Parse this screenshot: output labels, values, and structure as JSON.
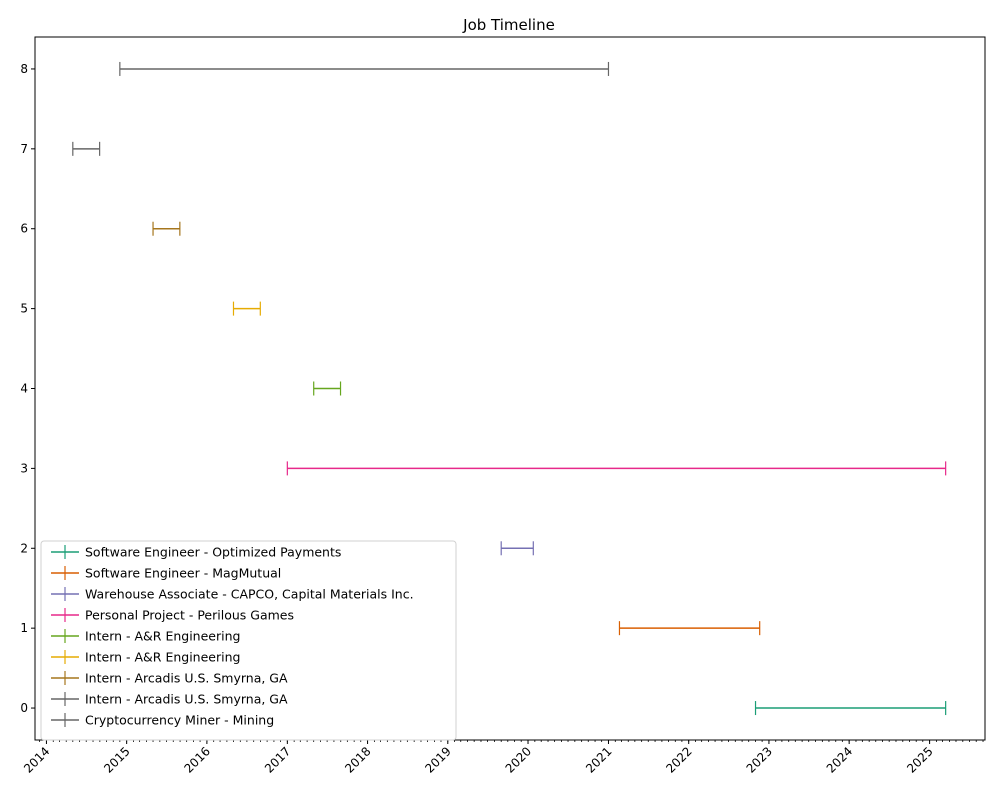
{
  "chart_data": {
    "type": "timeline",
    "title": "Job Timeline",
    "xlabel": "",
    "ylabel": "",
    "x_ticks": [
      "2014",
      "2015",
      "2016",
      "2017",
      "2018",
      "2019",
      "2020",
      "2021",
      "2022",
      "2023",
      "2024",
      "2025"
    ],
    "y_ticks": [
      "0",
      "1",
      "2",
      "3",
      "4",
      "5",
      "6",
      "7",
      "8"
    ],
    "xlim": [
      "2013-11-10",
      "2025-09-10"
    ],
    "ylim": [
      -0.4,
      8.4
    ],
    "legend_position": "lower-left",
    "series": [
      {
        "name": "Software Engineer - Optimized Payments",
        "y": 0,
        "start": "2022-11-01",
        "end": "2025-03-15",
        "color": "#1b9e77"
      },
      {
        "name": "Software Engineer - MagMutual",
        "y": 1,
        "start": "2021-02-20",
        "end": "2022-11-20",
        "color": "#d95f02"
      },
      {
        "name": "Warehouse Associate - CAPCO, Capital Materials Inc.",
        "y": 2,
        "start": "2019-09-01",
        "end": "2020-01-25",
        "color": "#7570b3"
      },
      {
        "name": "Personal Project - Perilous Games",
        "y": 3,
        "start": "2017-01-01",
        "end": "2025-03-15",
        "color": "#e7298a"
      },
      {
        "name": "Intern - A&R Engineering",
        "y": 4,
        "start": "2017-05-01",
        "end": "2017-08-31",
        "color": "#66a61e"
      },
      {
        "name": "Intern - A&R Engineering",
        "y": 5,
        "start": "2016-05-01",
        "end": "2016-08-31",
        "color": "#e6ab02"
      },
      {
        "name": "Intern - Arcadis U.S. Smyrna, GA",
        "y": 6,
        "start": "2015-05-01",
        "end": "2015-08-31",
        "color": "#a6761d"
      },
      {
        "name": "Intern - Arcadis U.S. Smyrna, GA",
        "y": 7,
        "start": "2014-05-01",
        "end": "2014-08-31",
        "color": "#666666"
      },
      {
        "name": "Cryptocurrency Miner - Mining",
        "y": 8,
        "start": "2014-12-01",
        "end": "2021-01-01",
        "color": "#666666"
      }
    ]
  }
}
